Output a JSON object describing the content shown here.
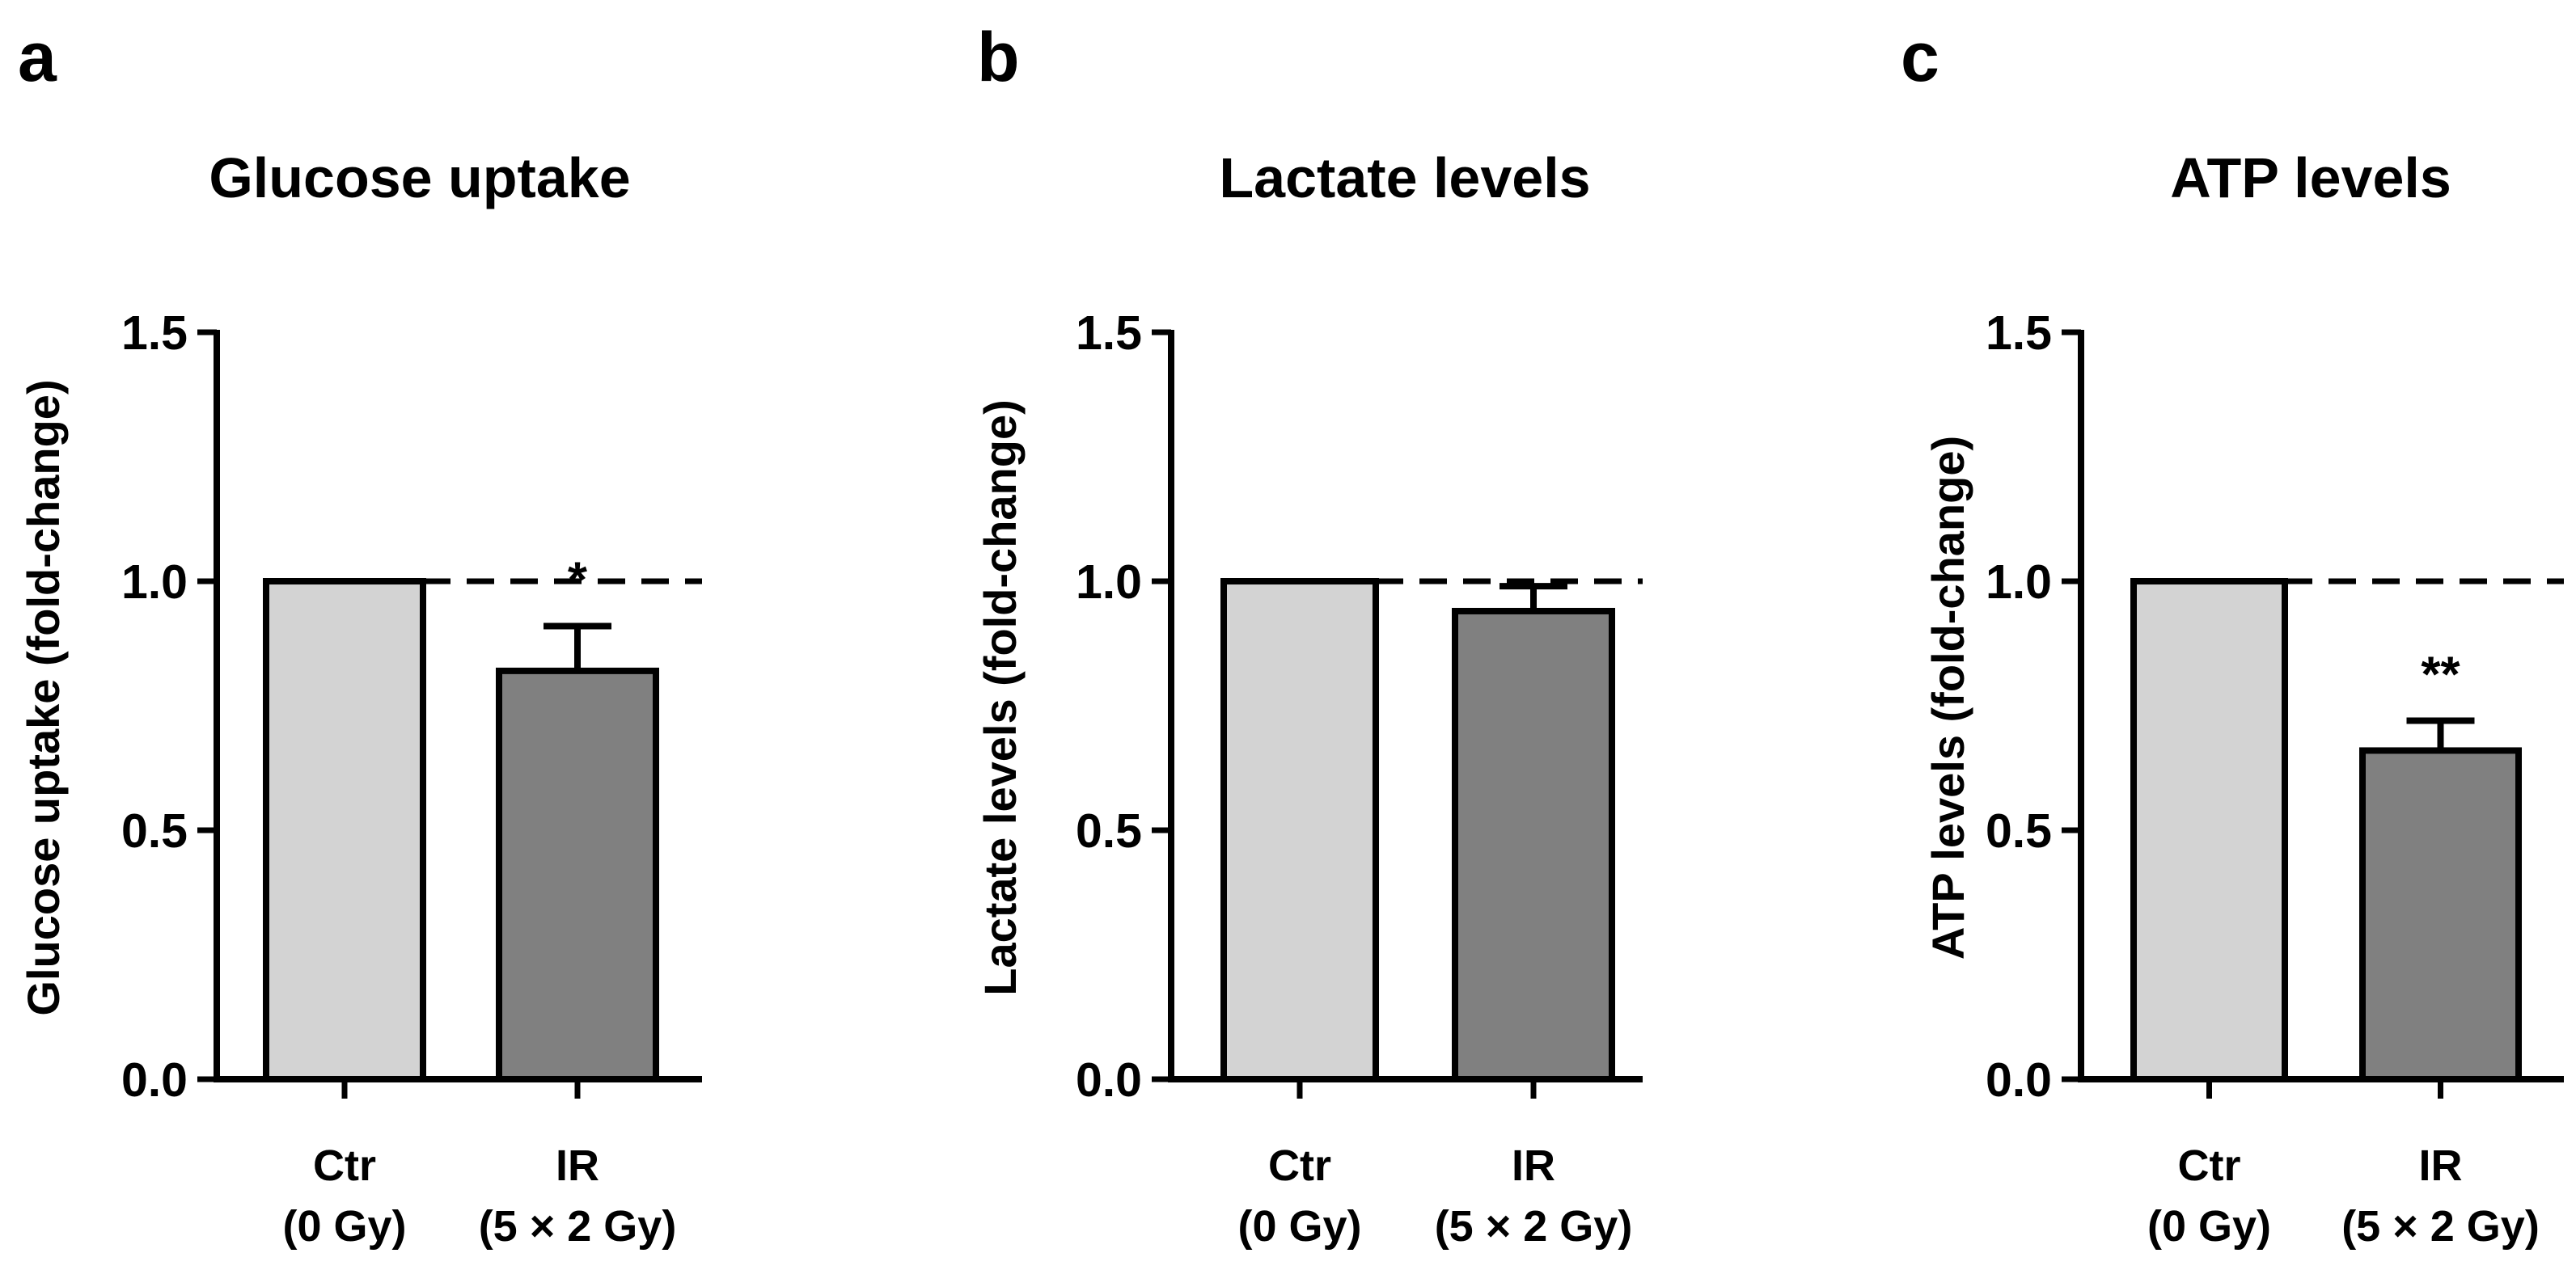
{
  "colors": {
    "control_bar": "#d3d3d3",
    "treated_bar": "#808080",
    "axis": "#000000"
  },
  "chart_data": [
    {
      "panel": "a",
      "type": "bar",
      "title": "Glucose uptake",
      "ylabel": "Glucose uptake (fold-change)",
      "xlabel": "",
      "ylim": [
        0,
        1.5
      ],
      "yticks": [
        "0.0",
        "0.5",
        "1.0",
        "1.5"
      ],
      "reference_line": 1.0,
      "categories": [
        {
          "line1": "Ctr",
          "line2": "(0 Gy)"
        },
        {
          "line1": "IR",
          "line2": "(5 × 2 Gy)"
        }
      ],
      "values": [
        1.0,
        0.82
      ],
      "errors": [
        0,
        0.09
      ],
      "significance": [
        "",
        "*"
      ]
    },
    {
      "panel": "b",
      "type": "bar",
      "title": "Lactate levels",
      "ylabel": "Lactate levels (fold-change)",
      "xlabel": "",
      "ylim": [
        0,
        1.5
      ],
      "yticks": [
        "0.0",
        "0.5",
        "1.0",
        "1.5"
      ],
      "reference_line": 1.0,
      "categories": [
        {
          "line1": "Ctr",
          "line2": "(0 Gy)"
        },
        {
          "line1": "IR",
          "line2": "(5 × 2 Gy)"
        }
      ],
      "values": [
        1.0,
        0.94
      ],
      "errors": [
        0,
        0.05
      ],
      "significance": [
        "",
        ""
      ]
    },
    {
      "panel": "c",
      "type": "bar",
      "title": "ATP levels",
      "ylabel": "ATP levels (fold-change)",
      "xlabel": "",
      "ylim": [
        0,
        1.5
      ],
      "yticks": [
        "0.0",
        "0.5",
        "1.0",
        "1.5"
      ],
      "reference_line": 1.0,
      "categories": [
        {
          "line1": "Ctr",
          "line2": "(0 Gy)"
        },
        {
          "line1": "IR",
          "line2": "(5 × 2 Gy)"
        }
      ],
      "values": [
        1.0,
        0.66
      ],
      "errors": [
        0,
        0.06
      ],
      "significance": [
        "",
        "**"
      ]
    }
  ]
}
